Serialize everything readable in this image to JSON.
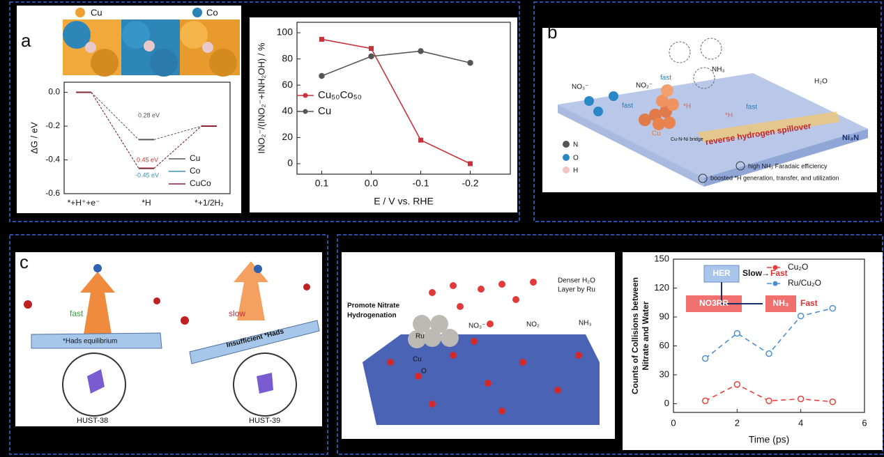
{
  "chart_data": [
    {
      "type": "step",
      "ylabel": "ΔG / eV",
      "categories": [
        "*+H⁺+e⁻",
        "*H",
        "*+1/2H₂"
      ],
      "series": [
        {
          "name": "Cu",
          "color": "#555555",
          "values": [
            0,
            -0.28,
            -0.2
          ]
        },
        {
          "name": "Co",
          "color": "#3a8fb0",
          "values": [
            0,
            -0.45,
            -0.2
          ]
        },
        {
          "name": "CuCo",
          "color": "#8b2335",
          "values": [
            0,
            -0.45,
            -0.2
          ]
        }
      ],
      "ylim": [
        -0.6,
        0.06
      ],
      "yticks": [
        {
          "value": 0,
          "label": "0.0"
        },
        -0.2,
        -0.4,
        -0.6
      ],
      "legend": "lower right",
      "annotations": [
        {
          "text": "0.28 eV",
          "color": "#555555"
        },
        {
          "text": "0.45 eV",
          "color": "#c0392b"
        },
        {
          "text": "-0.45 eV",
          "color": "#3a8fb0"
        }
      ]
    },
    {
      "type": "line",
      "xlabel": "E / V vs. RHE",
      "ylabel": "INO₂⁻/(INO₂⁻+INH₂OH) / %",
      "categories": [
        "0.1",
        "0.0",
        "-0.1",
        "-0.2"
      ],
      "series": [
        {
          "name": "Cu₅₀Co₅₀",
          "color": "#c8323c",
          "marker": "square",
          "values": [
            95,
            88,
            18,
            0
          ]
        },
        {
          "name": "Cu",
          "color": "#555555",
          "marker": "circle",
          "values": [
            67,
            82,
            86,
            77
          ]
        }
      ],
      "ylim": [
        -8,
        108
      ],
      "yticks": [
        0,
        20,
        40,
        60,
        80,
        100
      ],
      "legend": "center left"
    },
    {
      "type": "line",
      "xlabel": "Time (ps)",
      "ylabel_lines": [
        "Counts of Collisions between",
        "Nitrate and Water"
      ],
      "x": [
        1,
        2,
        3,
        4,
        5
      ],
      "line_style": "dashed",
      "series": [
        {
          "name": "Cu₂O",
          "color": "#e8413c",
          "marker": "circle",
          "values": [
            3,
            20,
            3,
            5,
            2
          ]
        },
        {
          "name": "Ru/Cu₂O",
          "color": "#4a8fd0",
          "marker": "circle",
          "values": [
            47,
            73,
            52,
            91,
            99
          ]
        }
      ],
      "xlim": [
        0,
        6
      ],
      "xticks": [
        0,
        2,
        4,
        6
      ],
      "ylim": [
        -9,
        150
      ],
      "yticks": [
        0,
        30,
        60,
        90,
        120,
        150
      ],
      "legend": "upper right",
      "annotations": [
        "HER",
        "Slow",
        "→",
        "Fast",
        "NO3RR",
        "NH₃",
        "Fast"
      ]
    }
  ],
  "panels": {
    "a": {
      "label": "a",
      "legend": [
        "Cu",
        "Co"
      ]
    },
    "b": {
      "label": "b",
      "labels": [
        "NO₃⁻",
        "fast",
        "NO₂⁻",
        "fast",
        "NH₃",
        "H₂O",
        "*H",
        "*H",
        "fast",
        "Cu",
        "Cu-N-Ni bridge",
        "reverse hydrogen spillover",
        "Ni₃N",
        "N",
        "O",
        "H",
        "high NH₃ Faradaic efficiency",
        "boosted *H generation, transfer, and utilization"
      ]
    },
    "c": {
      "label": "c",
      "labels": [
        "fast",
        "slow",
        "*Hads equilibrium",
        "Insufficient *Hads",
        "HUST-38",
        "HUST-39"
      ]
    },
    "d": {
      "labels": [
        "Denser H₂O",
        "Layer by Ru",
        "Promote Nitrate",
        "Hydrogenation",
        "Ru",
        "Cu",
        "O",
        "NO₃⁻",
        "NO₂",
        "NH₃"
      ]
    }
  }
}
